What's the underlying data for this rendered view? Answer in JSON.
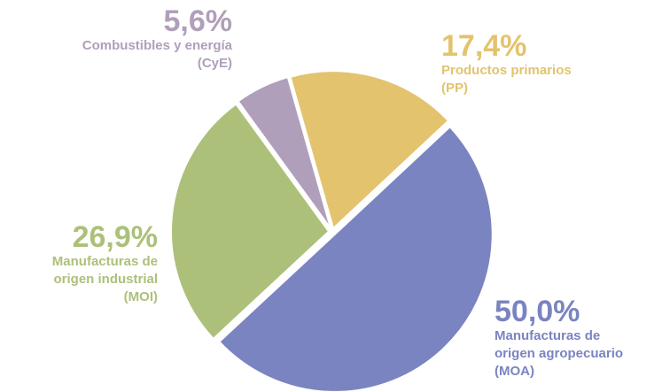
{
  "chart_data": {
    "type": "pie",
    "categories": [
      "Combustibles y energía\n(CyE)",
      "Productos primarios\n(PP)",
      "Manufacturas de\norigen agropecuario\n(MOA)",
      "Manufacturas de\norigen industrial\n(MOI)"
    ],
    "values": [
      5.6,
      17.4,
      50.0,
      26.9
    ],
    "value_labels": [
      "5,6%",
      "17,4%",
      "50,0%",
      "26,9%"
    ],
    "colors": [
      "#b09fba",
      "#e3c36e",
      "#7a84c0",
      "#adc07a"
    ]
  }
}
